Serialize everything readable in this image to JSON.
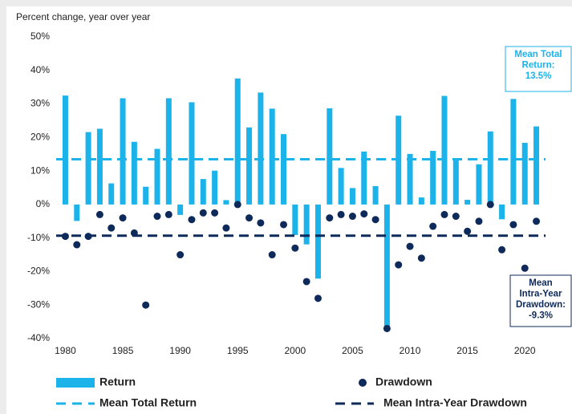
{
  "chart_data": {
    "type": "bar",
    "y_axis_label": "Percent change, year over year",
    "x": [
      1980,
      1981,
      1982,
      1983,
      1984,
      1985,
      1986,
      1987,
      1988,
      1989,
      1990,
      1991,
      1992,
      1993,
      1994,
      1995,
      1996,
      1997,
      1998,
      1999,
      2000,
      2001,
      2002,
      2003,
      2004,
      2005,
      2006,
      2007,
      2008,
      2009,
      2010,
      2011,
      2012,
      2013,
      2014,
      2015,
      2016,
      2017,
      2018,
      2019,
      2020,
      2021
    ],
    "series": [
      {
        "name": "Return",
        "type": "bar",
        "color": "#1cb2ea",
        "values": [
          32.5,
          -4.9,
          21.6,
          22.6,
          6.3,
          31.7,
          18.7,
          5.3,
          16.6,
          31.7,
          -3.1,
          30.5,
          7.6,
          10.1,
          1.3,
          37.6,
          23.0,
          33.4,
          28.6,
          21.0,
          -9.1,
          -11.9,
          -22.1,
          28.7,
          10.9,
          4.9,
          15.8,
          5.5,
          -37.0,
          26.5,
          15.1,
          2.1,
          16.0,
          32.4,
          13.7,
          1.4,
          12.0,
          21.8,
          -4.4,
          31.5,
          18.4,
          23.3
        ]
      },
      {
        "name": "Drawdown",
        "type": "scatter",
        "color": "#0d2a5a",
        "values": [
          -9.5,
          -12,
          -9.5,
          -3,
          -7,
          -4,
          -8.5,
          -30,
          -3.5,
          -3,
          -15,
          -4.5,
          -2.5,
          -2.5,
          -7,
          0,
          -4,
          -5.5,
          -15,
          -6,
          -13,
          -23,
          -28,
          -4,
          -3,
          -3.5,
          -2.8,
          -4.5,
          -37,
          -18,
          -12.5,
          -16,
          -6.5,
          -3,
          -3.5,
          -8,
          -5,
          0,
          -13.5,
          -6,
          -19,
          -5
        ]
      }
    ],
    "reference_lines": [
      {
        "name": "Mean Total Return",
        "value": 13.5,
        "color": "#1cb2ea",
        "annotation": [
          "Mean Total",
          "Return:",
          "13.5%"
        ]
      },
      {
        "name": "Mean Intra-Year Drawdown",
        "value": -9.3,
        "color": "#0d2a5a",
        "annotation": [
          "Mean",
          "Intra-Year",
          "Drawdown:",
          "-9.3%"
        ]
      }
    ],
    "xlim": [
      1979.2,
      2021.8
    ],
    "xticks": [
      1980,
      1985,
      1990,
      1995,
      2000,
      2005,
      2010,
      2015,
      2020
    ],
    "ylim": [
      -40,
      50
    ],
    "yticks": [
      {
        "value": 50,
        "label": "50%"
      },
      {
        "value": 40,
        "label": "40%"
      },
      {
        "value": 30,
        "label": "30%"
      },
      {
        "value": 20,
        "label": "20%"
      },
      {
        "value": 10,
        "label": "10%"
      },
      {
        "value": 0,
        "label": "0%"
      },
      {
        "value": -10,
        "label": "-10%"
      },
      {
        "value": -20,
        "label": "-20%"
      },
      {
        "value": -30,
        "label": "-30%"
      },
      {
        "value": -40,
        "label": "-40%"
      }
    ],
    "grid": false
  }
}
